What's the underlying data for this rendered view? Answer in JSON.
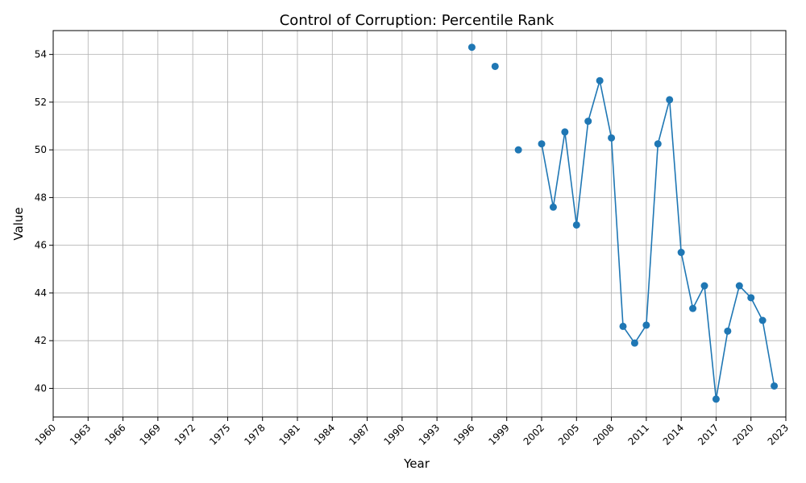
{
  "chart_data": {
    "type": "line",
    "title": "Control of Corruption: Percentile Rank",
    "xlabel": "Year",
    "ylabel": "Value",
    "xlim": [
      1960,
      2023
    ],
    "ylim": [
      38.8,
      55.0
    ],
    "x_ticks": [
      1960,
      1963,
      1966,
      1969,
      1972,
      1975,
      1978,
      1981,
      1984,
      1987,
      1990,
      1993,
      1996,
      1999,
      2002,
      2005,
      2008,
      2011,
      2014,
      2017,
      2020,
      2023
    ],
    "y_ticks": [
      40,
      42,
      44,
      46,
      48,
      50,
      52,
      54
    ],
    "grid": true,
    "color": "#1f77b4",
    "series": [
      {
        "x": [
          1996,
          1998,
          2000,
          2002,
          2003,
          2004,
          2005,
          2006,
          2007,
          2008,
          2009,
          2010,
          2011,
          2012,
          2013,
          2014,
          2015,
          2016,
          2017,
          2018,
          2019,
          2020,
          2021,
          2022
        ],
        "values": [
          54.3,
          53.5,
          50.0,
          50.25,
          47.6,
          50.75,
          46.85,
          51.2,
          52.9,
          50.5,
          42.6,
          41.9,
          42.65,
          50.25,
          52.1,
          45.7,
          43.35,
          44.3,
          39.55,
          42.4,
          44.3,
          43.8,
          42.85,
          40.1
        ]
      }
    ]
  }
}
